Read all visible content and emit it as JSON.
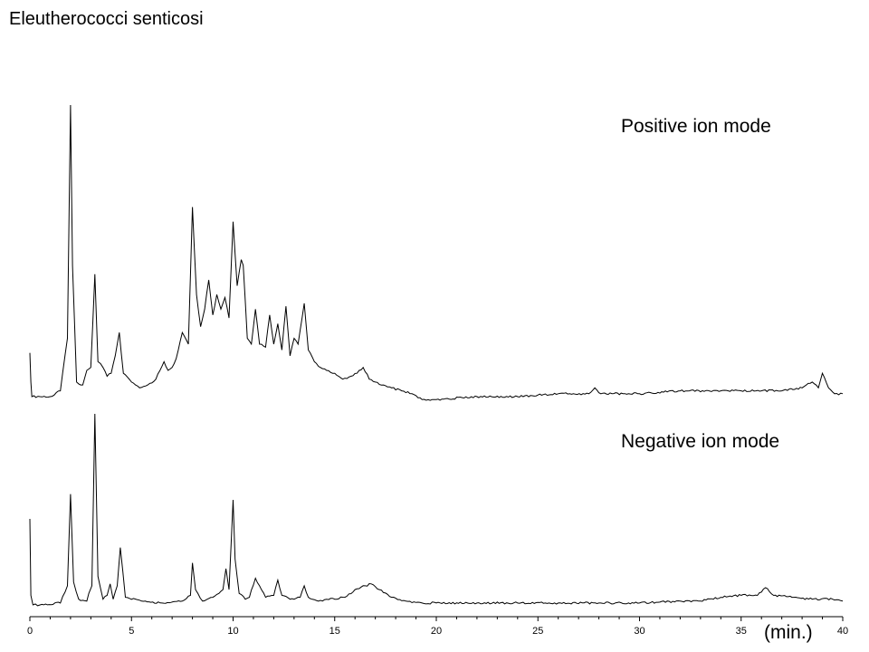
{
  "chart_data": {
    "type": "line",
    "title": "Eleutherococci senticosi",
    "x_unit_label": "(min.)",
    "xlim": [
      0,
      40
    ],
    "x_ticks": [
      "0",
      "5",
      "10",
      "15",
      "20",
      "25",
      "30",
      "35",
      "40"
    ],
    "grid": false,
    "y_axis_shown": false,
    "series": [
      {
        "name": "Positive ion mode",
        "color": "#000000",
        "x": [
          0,
          0.05,
          0.1,
          0.5,
          1.0,
          1.5,
          1.85,
          2.0,
          2.1,
          2.3,
          2.6,
          2.8,
          3.0,
          3.2,
          3.35,
          3.6,
          3.8,
          4.0,
          4.2,
          4.4,
          4.6,
          5.0,
          5.4,
          5.8,
          6.2,
          6.6,
          6.8,
          7.0,
          7.2,
          7.5,
          7.8,
          8.0,
          8.2,
          8.4,
          8.6,
          8.8,
          9.0,
          9.2,
          9.4,
          9.6,
          9.8,
          10.0,
          10.2,
          10.4,
          10.5,
          10.7,
          10.9,
          11.1,
          11.3,
          11.6,
          11.8,
          12.0,
          12.2,
          12.4,
          12.6,
          12.8,
          13.0,
          13.2,
          13.5,
          13.7,
          14.0,
          14.3,
          14.6,
          15.0,
          15.4,
          15.8,
          16.1,
          16.4,
          16.7,
          17.0,
          17.4,
          17.8,
          18.3,
          18.8,
          19.3,
          20,
          22,
          24,
          26,
          27.5,
          27.8,
          28.1,
          30,
          32,
          34,
          35,
          36,
          37,
          38,
          38.5,
          38.8,
          39.0,
          39.3,
          39.6,
          40
        ],
        "values": [
          15,
          5,
          0,
          0,
          0,
          2,
          20,
          100,
          45,
          5,
          4,
          9,
          10,
          42,
          12,
          10,
          7,
          8,
          14,
          22,
          8,
          5,
          3,
          4,
          6,
          12,
          9,
          10,
          13,
          22,
          18,
          65,
          35,
          24,
          30,
          40,
          28,
          35,
          30,
          34,
          27,
          60,
          38,
          47,
          45,
          20,
          18,
          30,
          18,
          17,
          28,
          18,
          25,
          16,
          31,
          14,
          20,
          18,
          32,
          16,
          12,
          10,
          9,
          8,
          6,
          7,
          8,
          10,
          6,
          5,
          4,
          3,
          2,
          1,
          -1,
          -1,
          0,
          0,
          1,
          1,
          3,
          1,
          1,
          2,
          2,
          2,
          2,
          2,
          3,
          5,
          3,
          8,
          3,
          1,
          1
        ]
      },
      {
        "name": "Negative ion mode",
        "color": "#000000",
        "x": [
          0,
          0.05,
          0.15,
          0.5,
          1.5,
          1.85,
          2.0,
          2.15,
          2.4,
          2.8,
          2.9,
          3.05,
          3.2,
          3.35,
          3.6,
          3.8,
          3.95,
          4.1,
          4.3,
          4.45,
          4.7,
          5.5,
          6.5,
          7.5,
          7.9,
          8.0,
          8.15,
          8.5,
          9.0,
          9.3,
          9.5,
          9.65,
          9.8,
          10.0,
          10.1,
          10.3,
          10.6,
          10.8,
          11.1,
          11.3,
          11.6,
          12.0,
          12.2,
          12.4,
          12.8,
          13.3,
          13.5,
          13.7,
          14.2,
          14.6,
          15.0,
          15.5,
          16.0,
          16.5,
          16.8,
          17.2,
          17.8,
          18.5,
          19.3,
          20,
          22,
          24,
          26,
          28,
          30,
          32,
          33,
          34,
          35,
          35.8,
          36.2,
          36.6,
          37.5,
          38.5,
          39.5,
          40
        ],
        "values": [
          45,
          5,
          0,
          0,
          1,
          10,
          58,
          12,
          3,
          2,
          6,
          10,
          100,
          15,
          3,
          5,
          11,
          3,
          10,
          30,
          4,
          2,
          1,
          2,
          5,
          22,
          8,
          2,
          4,
          6,
          8,
          19,
          8,
          55,
          24,
          6,
          3,
          4,
          14,
          10,
          4,
          5,
          13,
          5,
          3,
          4,
          10,
          4,
          2,
          3,
          3,
          4,
          8,
          10,
          11,
          8,
          4,
          2,
          1,
          1,
          1,
          1,
          1,
          1,
          1,
          2,
          2,
          4,
          5,
          5,
          9,
          5,
          4,
          3,
          3,
          2
        ]
      }
    ]
  }
}
